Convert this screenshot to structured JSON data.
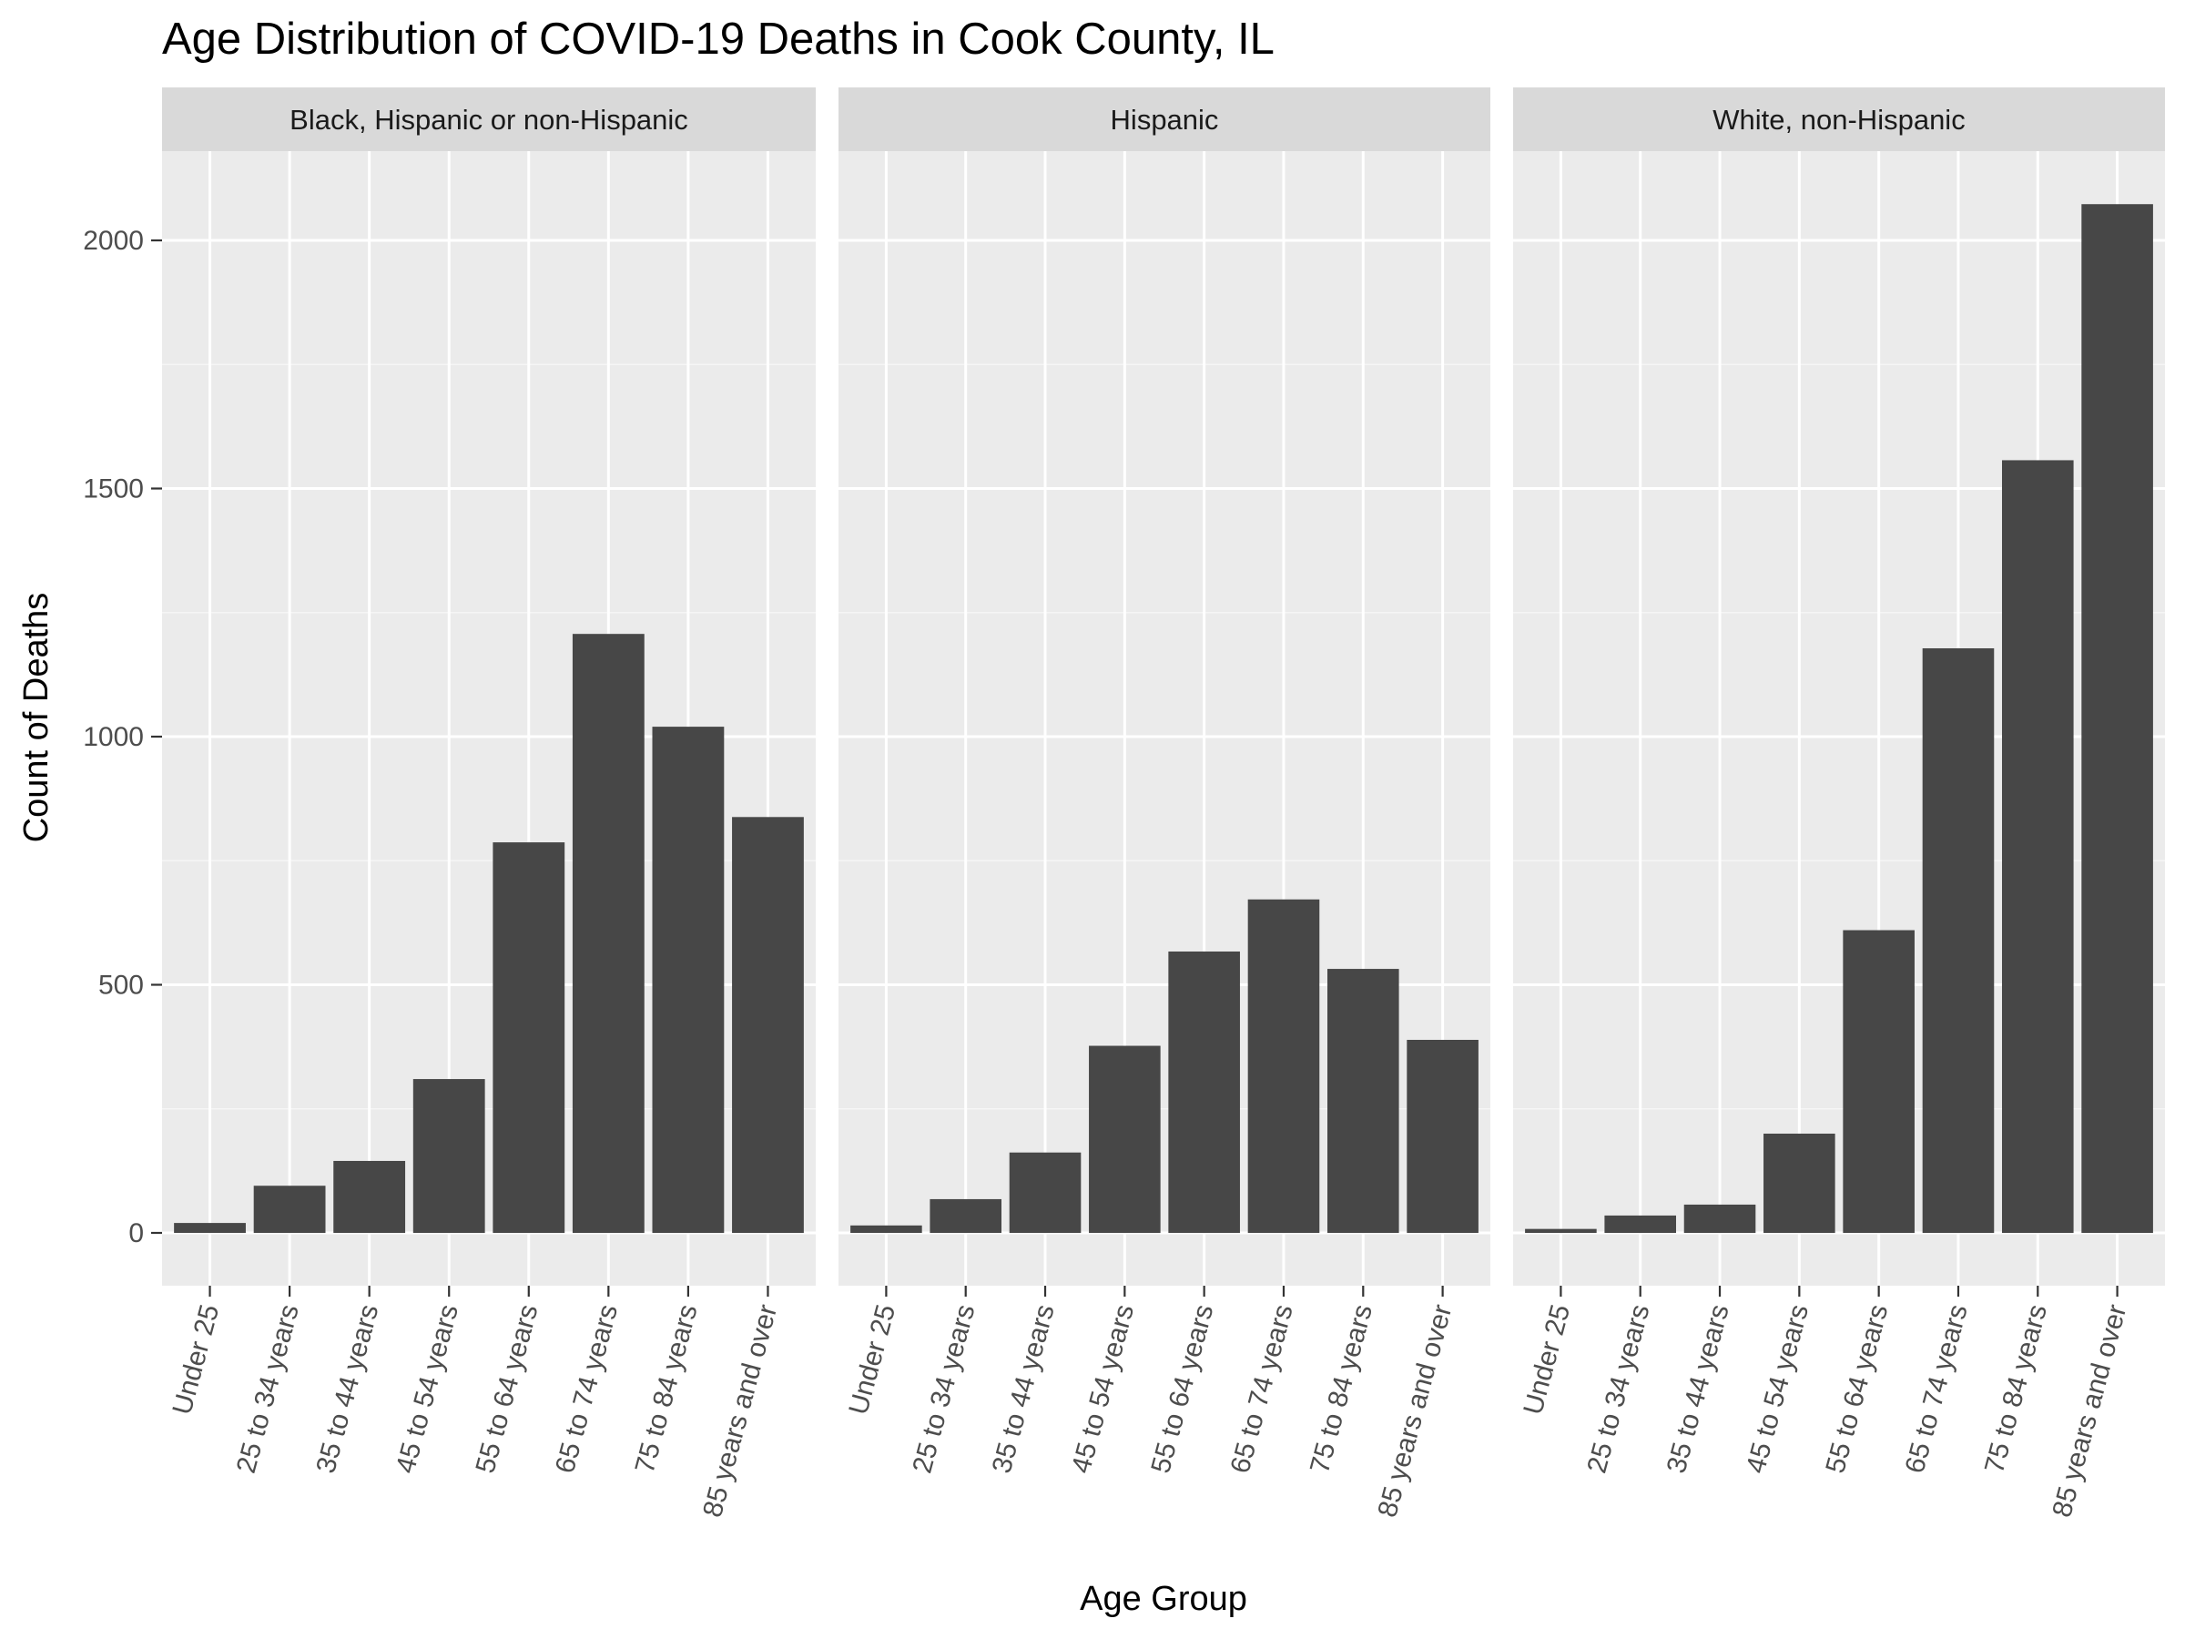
{
  "chart_data": {
    "type": "bar",
    "title": "Age Distribution of COVID-19 Deaths in Cook County, IL",
    "xlabel": "Age Group",
    "ylabel": "Count of Deaths",
    "ylim": [
      -100,
      2200
    ],
    "yticks": [
      0,
      500,
      1000,
      1500,
      2000
    ],
    "grid": true,
    "categories": [
      "Under 25",
      "25 to 34 years",
      "35 to 44 years",
      "45 to 54 years",
      "55 to 64 years",
      "65 to 74 years",
      "75 to 84 years",
      "85 years and over"
    ],
    "facets": [
      {
        "label": "Black, Hispanic or non-Hispanic",
        "values": [
          20,
          95,
          145,
          310,
          787,
          1207,
          1020,
          838
        ]
      },
      {
        "label": "Hispanic",
        "values": [
          15,
          68,
          162,
          377,
          567,
          672,
          532,
          389
        ]
      },
      {
        "label": "White, non-Hispanic",
        "values": [
          8,
          35,
          57,
          200,
          610,
          1178,
          1557,
          2073
        ]
      }
    ],
    "colors": {
      "bar": "#474747",
      "panel": "#ebebeb",
      "strip": "#d9d9d9",
      "grid": "#ffffff"
    }
  }
}
